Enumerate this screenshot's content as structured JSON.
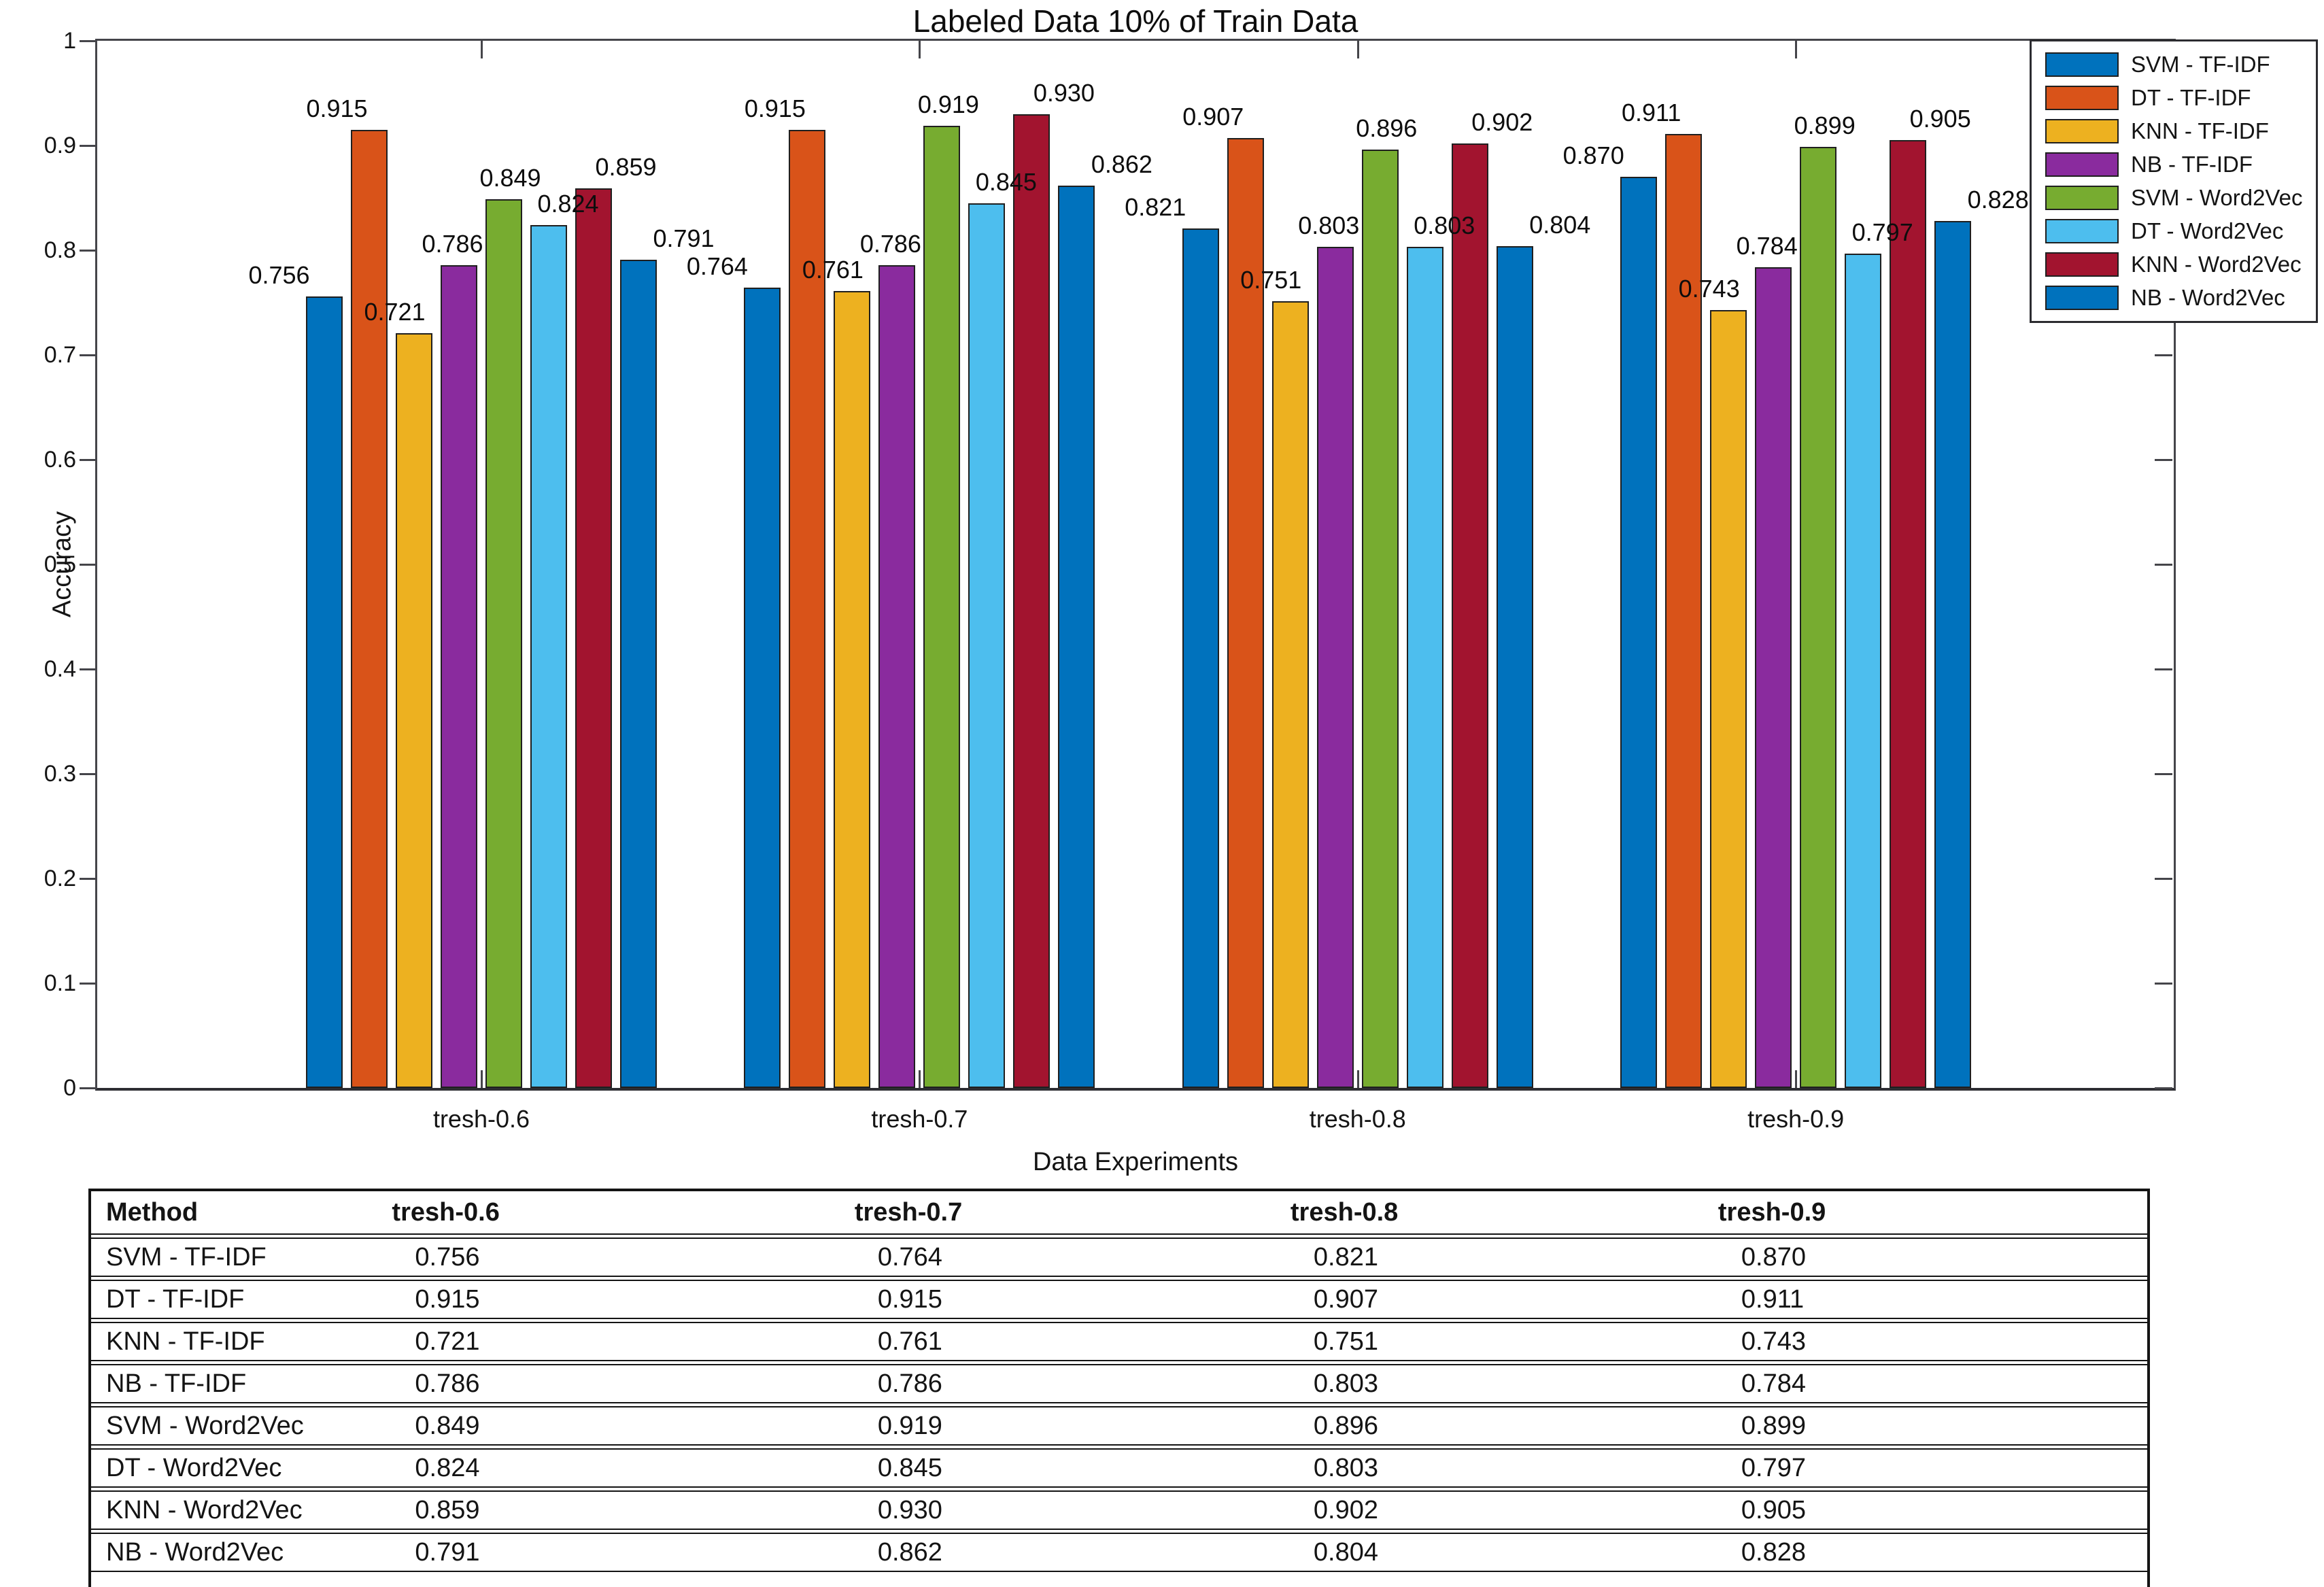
{
  "chart_data": {
    "type": "bar",
    "title": "Labeled Data 10% of Train Data",
    "xlabel": "Data Experiments",
    "ylabel": "Accuracy",
    "ylim": [
      0,
      1
    ],
    "yticks": [
      0,
      0.1,
      0.2,
      0.3,
      0.4,
      0.5,
      0.6,
      0.7,
      0.8,
      0.9,
      1
    ],
    "grid": false,
    "legend_position": "top-right",
    "bar_value_labels": true,
    "categories": [
      "tresh-0.6",
      "tresh-0.7",
      "tresh-0.8",
      "tresh-0.9"
    ],
    "series": [
      {
        "name": "SVM - TF-IDF",
        "color": "#0072BD",
        "values": [
          0.756,
          0.764,
          0.821,
          0.87
        ]
      },
      {
        "name": "DT - TF-IDF",
        "color": "#D95319",
        "values": [
          0.915,
          0.915,
          0.907,
          0.911
        ]
      },
      {
        "name": "KNN - TF-IDF",
        "color": "#EDB120",
        "values": [
          0.721,
          0.761,
          0.751,
          0.743
        ]
      },
      {
        "name": "NB - TF-IDF",
        "color": "#8A2B9E",
        "values": [
          0.786,
          0.786,
          0.803,
          0.784
        ]
      },
      {
        "name": "SVM - Word2Vec",
        "color": "#77AC30",
        "values": [
          0.849,
          0.919,
          0.896,
          0.899
        ]
      },
      {
        "name": "DT - Word2Vec",
        "color": "#4DBEEE",
        "values": [
          0.824,
          0.845,
          0.803,
          0.797
        ]
      },
      {
        "name": "KNN - Word2Vec",
        "color": "#A2142F",
        "values": [
          0.859,
          0.93,
          0.902,
          0.905
        ]
      },
      {
        "name": "NB - Word2Vec",
        "color": "#0072BD",
        "values": [
          0.791,
          0.862,
          0.804,
          0.828
        ]
      }
    ]
  },
  "table": {
    "headers": [
      "Method",
      "tresh-0.6",
      "tresh-0.7",
      "tresh-0.8",
      "tresh-0.9"
    ],
    "rows": [
      {
        "method": "SVM - TF-IDF",
        "values": [
          "0.756",
          "0.764",
          "0.821",
          "0.870"
        ]
      },
      {
        "method": "DT - TF-IDF",
        "values": [
          "0.915",
          "0.915",
          "0.907",
          "0.911"
        ]
      },
      {
        "method": "KNN - TF-IDF",
        "values": [
          "0.721",
          "0.761",
          "0.751",
          "0.743"
        ]
      },
      {
        "method": "NB - TF-IDF",
        "values": [
          "0.786",
          "0.786",
          "0.803",
          "0.784"
        ]
      },
      {
        "method": "SVM - Word2Vec",
        "values": [
          "0.849",
          "0.919",
          "0.896",
          "0.899"
        ]
      },
      {
        "method": "DT - Word2Vec",
        "values": [
          "0.824",
          "0.845",
          "0.803",
          "0.797"
        ]
      },
      {
        "method": "KNN - Word2Vec",
        "values": [
          "0.859",
          "0.930",
          "0.902",
          "0.905"
        ]
      },
      {
        "method": "NB - Word2Vec",
        "values": [
          "0.791",
          "0.862",
          "0.804",
          "0.828"
        ]
      }
    ]
  }
}
